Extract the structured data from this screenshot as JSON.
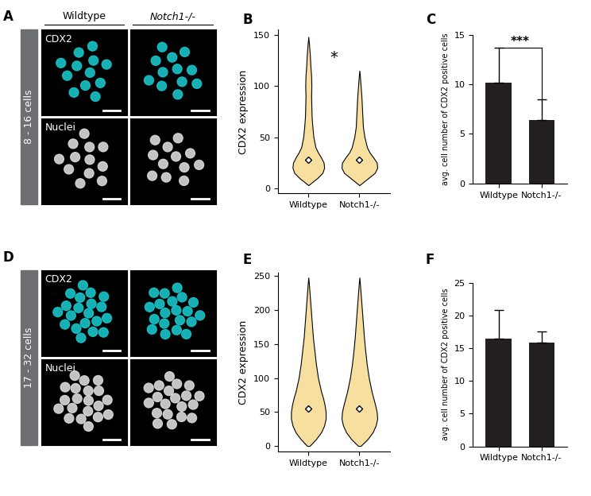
{
  "panel_letters": [
    "A",
    "B",
    "C",
    "D",
    "E",
    "F"
  ],
  "image_panels": [
    {
      "row_label": "8 - 16 cells",
      "columns": [
        "Wildtype",
        "Notch1-/-"
      ],
      "channels": [
        {
          "name": "CDX2",
          "color": "#19c3c8"
        },
        {
          "name": "Nuclei",
          "color": "#d9d9d9"
        }
      ]
    },
    {
      "row_label": "17 - 32 cells",
      "channels": [
        {
          "name": "CDX2",
          "color": "#19c3c8"
        },
        {
          "name": "Nuclei",
          "color": "#d9d9d9"
        }
      ]
    }
  ],
  "chart_data": [
    {
      "type": "violin",
      "categories": [
        "Wildtype",
        "Notch1-/-"
      ],
      "ylabel": "CDX2 expression",
      "ylim": [
        -5,
        155
      ],
      "yticks": [
        0,
        50,
        100,
        150
      ],
      "color": "#f7dfa0",
      "violins": [
        {
          "median": 28,
          "profile": {
            "y": [
              3,
              5,
              10,
              15,
              20,
              25,
              30,
              35,
              40,
              50,
              60,
              70,
              80,
              90,
              100,
              110,
              120,
              130,
              140,
              148
            ],
            "width": [
              0,
              0.1,
              0.35,
              0.55,
              0.62,
              0.6,
              0.5,
              0.38,
              0.28,
              0.2,
              0.16,
              0.13,
              0.12,
              0.11,
              0.12,
              0.11,
              0.08,
              0.06,
              0.03,
              0
            ]
          }
        },
        {
          "median": 28,
          "profile": {
            "y": [
              3,
              5,
              10,
              15,
              20,
              25,
              30,
              35,
              40,
              50,
              60,
              70,
              80,
              90,
              100,
              110,
              115
            ],
            "width": [
              0,
              0.1,
              0.35,
              0.6,
              0.7,
              0.68,
              0.55,
              0.4,
              0.3,
              0.2,
              0.14,
              0.12,
              0.1,
              0.08,
              0.05,
              0.02,
              0
            ]
          }
        }
      ],
      "annotation": {
        "text": "*",
        "y": 128
      }
    },
    {
      "type": "bar",
      "categories": [
        "Wildtype",
        "Notch1-/-"
      ],
      "values": [
        10.2,
        6.4
      ],
      "errors": [
        3.5,
        2.1
      ],
      "color": "#231f20",
      "ylabel": "avg. cell number of CDX2 positive cells",
      "ylim": [
        0,
        15
      ],
      "yticks": [
        0,
        5,
        10,
        15
      ],
      "significance": {
        "text": "***",
        "y": 13.7
      }
    },
    {
      "type": "violin",
      "categories": [
        "Wildtype",
        "Notch1-/-"
      ],
      "ylabel": "CDX2 expression",
      "ylim": [
        -8,
        255
      ],
      "yticks": [
        0,
        50,
        100,
        150,
        200,
        250
      ],
      "color": "#f7dfa0",
      "violins": [
        {
          "median": 55,
          "profile": {
            "y": [
              0,
              10,
              20,
              30,
              40,
              50,
              60,
              70,
              80,
              100,
              120,
              140,
              160,
              180,
              200,
              220,
              240,
              248
            ],
            "width": [
              0.05,
              0.3,
              0.5,
              0.62,
              0.68,
              0.68,
              0.64,
              0.58,
              0.5,
              0.38,
              0.3,
              0.24,
              0.18,
              0.14,
              0.1,
              0.06,
              0.02,
              0
            ]
          }
        },
        {
          "median": 55,
          "profile": {
            "y": [
              0,
              10,
              20,
              30,
              40,
              50,
              60,
              70,
              80,
              100,
              120,
              140,
              160,
              180,
              200,
              220,
              240,
              248
            ],
            "width": [
              0.05,
              0.32,
              0.52,
              0.64,
              0.7,
              0.68,
              0.62,
              0.55,
              0.48,
              0.37,
              0.29,
              0.23,
              0.18,
              0.14,
              0.1,
              0.06,
              0.02,
              0
            ]
          }
        }
      ]
    },
    {
      "type": "bar",
      "categories": [
        "Wildtype",
        "Notch1-/-"
      ],
      "values": [
        16.5,
        15.8
      ],
      "errors": [
        4.3,
        1.7
      ],
      "color": "#231f20",
      "ylabel": "avg. cell number of CDX2 positive cells",
      "ylim": [
        0,
        25
      ],
      "yticks": [
        0,
        5,
        10,
        15,
        20,
        25
      ]
    }
  ]
}
